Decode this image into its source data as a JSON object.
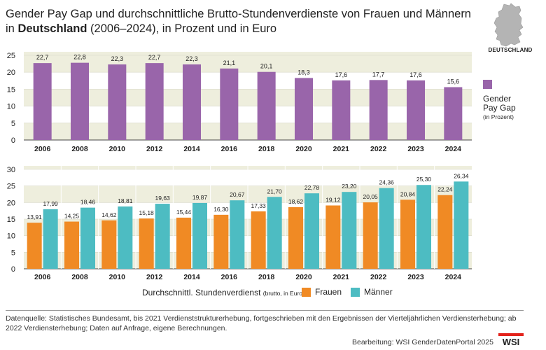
{
  "title": {
    "line1": "Gender Pay Gap und durchschnittliche Brutto-Stundenverdienste von Frauen und Männern",
    "line2_prefix": "in ",
    "line2_bold": "Deutschland",
    "line2_suffix": " (2006–2024), in Prozent und in Euro"
  },
  "map_label": "DEUTSCHLAND",
  "gap_legend": {
    "label_line1": "Gender",
    "label_line2": "Pay Gap",
    "unit": "(in Prozent)"
  },
  "earn_legend": {
    "label": "Durchschnittl. Stundenverdienst",
    "unit": "(brutto, in Euro)",
    "women": "Frauen",
    "men": "Männer"
  },
  "source_text": "Datenquelle: Statistisches Bundesamt, bis 2021 Verdienststrukturerhebung, fortgeschrieben mit den Ergebnissen der Vierteljährlichen Verdiensterhebung; ab 2022 Verdiensterhebung; Daten auf Anfrage, eigene Berechnungen.",
  "credit": "Bearbeitung: WSI GenderDatenPortal 2025",
  "logo_text": "WSI",
  "colors": {
    "gap": "#9965aa",
    "women": "#f08a24",
    "men": "#4dbcc2",
    "band": "#eeeedd",
    "grid": "#ffffff",
    "logo_red": "#e3231b"
  },
  "chart_data": [
    {
      "type": "bar",
      "title": "Gender Pay Gap",
      "ylabel": "in Prozent",
      "categories": [
        "2006",
        "2008",
        "2010",
        "2012",
        "2014",
        "2016",
        "2018",
        "2020",
        "2021",
        "2022",
        "2023",
        "2024"
      ],
      "values": [
        22.7,
        22.8,
        22.3,
        22.7,
        22.3,
        21.1,
        20.1,
        18.3,
        17.6,
        17.7,
        17.6,
        15.6
      ],
      "labels": [
        "22,7",
        "22,8",
        "22,3",
        "22,7",
        "22,3",
        "21,1",
        "20,1",
        "18,3",
        "17,6",
        "17,7",
        "17,6",
        "15,6"
      ],
      "ylim": [
        0,
        25
      ],
      "yticks": [
        0,
        5,
        10,
        15,
        20,
        25
      ]
    },
    {
      "type": "bar",
      "title": "Durchschnittl. Stundenverdienst (brutto, in Euro)",
      "categories": [
        "2006",
        "2008",
        "2010",
        "2012",
        "2014",
        "2016",
        "2018",
        "2020",
        "2021",
        "2022",
        "2023",
        "2024"
      ],
      "series": [
        {
          "name": "Frauen",
          "values": [
            13.91,
            14.25,
            14.62,
            15.18,
            15.44,
            16.3,
            17.33,
            18.62,
            19.12,
            20.05,
            20.84,
            22.24
          ],
          "labels": [
            "13,91",
            "14,25",
            "14,62",
            "15,18",
            "15,44",
            "16,30",
            "17,33",
            "18,62",
            "19,12",
            "20,05",
            "20,84",
            "22,24"
          ]
        },
        {
          "name": "Männer",
          "values": [
            17.99,
            18.46,
            18.81,
            19.63,
            19.87,
            20.67,
            21.7,
            22.78,
            23.2,
            24.36,
            25.3,
            26.34
          ],
          "labels": [
            "17,99",
            "18,46",
            "18,81",
            "19,63",
            "19,87",
            "20,67",
            "21,70",
            "22,78",
            "23,20",
            "24,36",
            "25,30",
            "26,34"
          ]
        }
      ],
      "ylim": [
        0,
        30
      ],
      "yticks": [
        0,
        5,
        10,
        15,
        20,
        25,
        30
      ]
    }
  ]
}
